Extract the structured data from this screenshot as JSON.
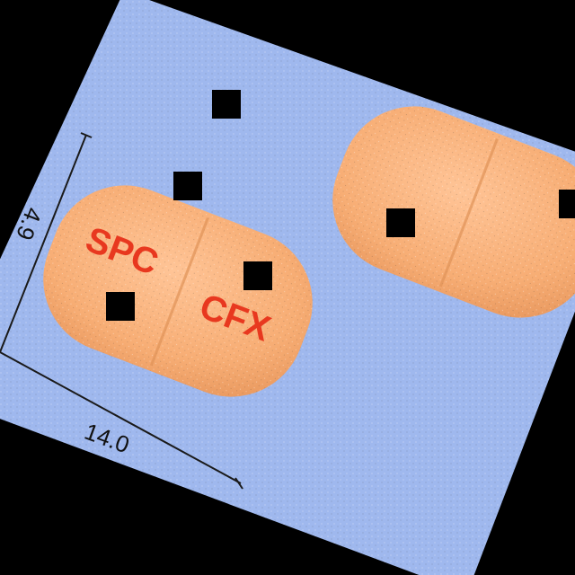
{
  "photo": {
    "background_color": "#9fb8ee",
    "pill_color": "#f7b07a",
    "imprint_color": "#e8381f",
    "imprint_left_half": "SPC",
    "imprint_right_half": "CFX",
    "dimension_length": "14.0",
    "dimension_width": "4.9"
  }
}
